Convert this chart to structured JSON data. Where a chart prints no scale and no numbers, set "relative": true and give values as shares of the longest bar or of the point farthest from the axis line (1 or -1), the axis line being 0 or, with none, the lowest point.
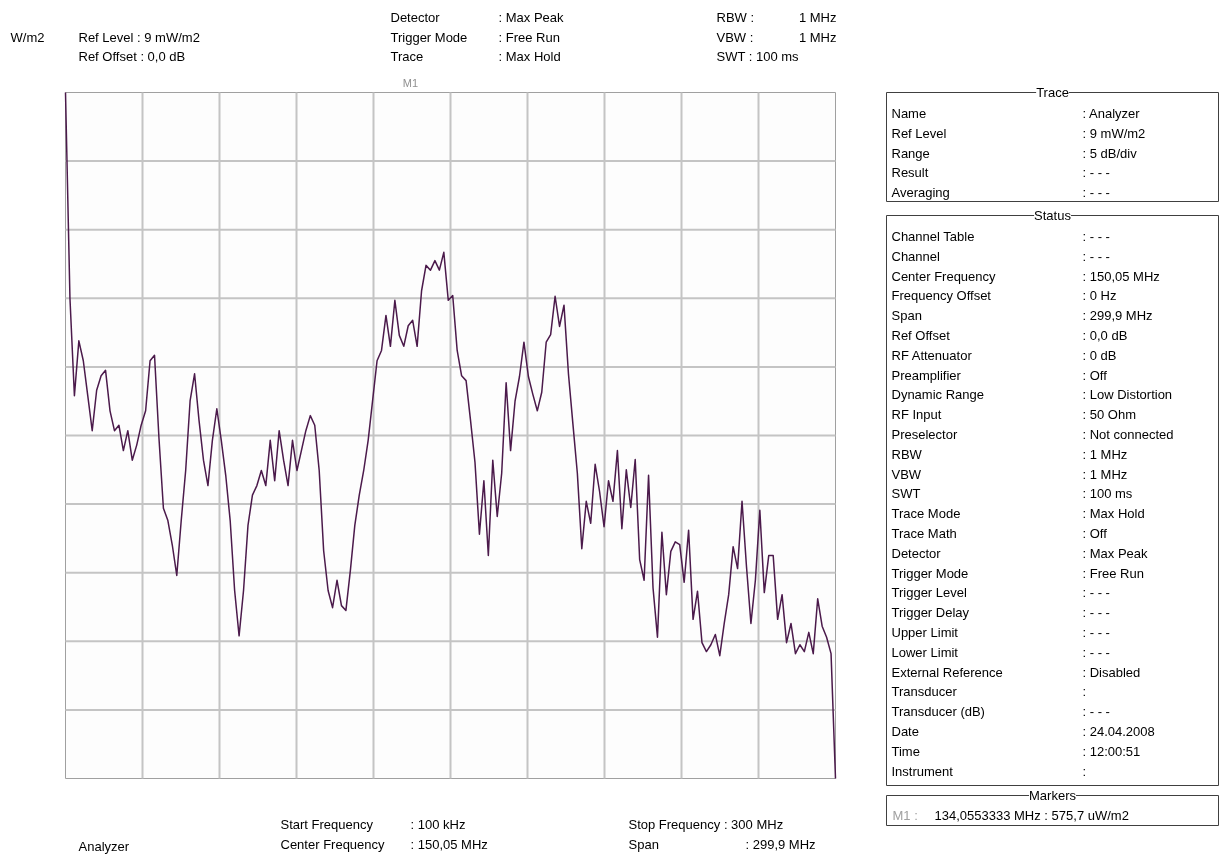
{
  "chart_data": [
    {
      "type": "line",
      "relative": true,
      "ylabel": "W/m2",
      "grid": true,
      "marker": "none",
      "line_style": "solid",
      "categories": [
        null,
        null,
        null,
        null,
        null,
        null,
        null,
        null,
        null,
        null,
        null,
        null,
        null,
        null,
        null,
        null,
        null,
        null,
        null,
        null,
        null,
        null,
        null,
        null,
        null,
        null,
        null,
        null,
        null,
        null,
        null,
        null,
        null,
        null,
        null,
        null,
        null,
        null,
        null,
        null,
        null,
        null,
        null,
        null,
        null,
        null,
        null,
        null,
        null,
        null,
        null,
        null,
        null,
        null,
        null,
        null,
        null,
        null,
        null,
        null,
        null,
        null,
        null,
        null,
        null,
        null,
        null,
        null,
        null,
        null,
        null,
        null,
        null,
        null,
        null,
        null,
        null,
        null,
        null,
        null,
        null,
        null,
        null,
        null,
        null,
        null,
        null,
        null,
        null,
        null,
        null,
        null,
        null,
        null,
        null,
        null,
        null,
        null,
        null,
        null,
        null,
        null,
        null,
        null,
        null,
        null,
        null,
        null,
        null,
        null,
        null,
        null,
        null,
        null,
        null,
        null,
        null,
        null,
        null,
        null,
        null,
        null,
        null,
        null,
        null,
        null,
        null,
        null,
        null,
        null,
        null,
        null,
        null,
        null,
        null,
        null,
        null,
        null,
        null,
        null,
        null,
        null,
        null,
        null,
        null,
        null,
        null,
        null,
        null,
        null,
        null,
        null,
        null,
        null,
        null,
        null,
        null,
        null,
        null,
        null,
        null,
        null,
        null,
        null,
        null,
        null,
        null,
        null,
        null,
        null,
        null,
        null,
        null,
        null
      ],
      "series": [
        {
          "color": "#4b1a4b",
          "values": [
            1.0,
            0.7,
            0.558,
            0.638,
            0.609,
            0.558,
            0.507,
            0.566,
            0.587,
            0.595,
            0.536,
            0.507,
            0.515,
            0.478,
            0.507,
            0.464,
            0.486,
            0.515,
            0.536,
            0.609,
            0.617,
            0.496,
            0.394,
            0.376,
            0.34,
            0.296,
            0.376,
            0.449,
            0.551,
            0.59,
            0.522,
            0.464,
            0.427,
            0.493,
            0.539,
            0.493,
            0.442,
            0.376,
            0.274,
            0.208,
            0.274,
            0.369,
            0.413,
            0.427,
            0.449,
            0.427,
            0.493,
            0.434,
            0.507,
            0.464,
            0.427,
            0.493,
            0.449,
            0.478,
            0.507,
            0.529,
            0.515,
            0.449,
            0.332,
            0.274,
            0.249,
            0.289,
            0.252,
            0.245,
            0.303,
            0.369,
            0.413,
            0.449,
            0.493,
            0.551,
            0.609,
            0.624,
            0.675,
            0.63,
            0.697,
            0.646,
            0.63,
            0.66,
            0.668,
            0.63,
            0.711,
            0.748,
            0.741,
            0.755,
            0.741,
            0.767,
            0.697,
            0.704,
            0.624,
            0.587,
            0.58,
            0.522,
            0.461,
            0.356,
            0.434,
            0.325,
            0.464,
            0.382,
            0.445,
            0.577,
            0.478,
            0.55,
            0.586,
            0.636,
            0.586,
            0.56,
            0.536,
            0.563,
            0.636,
            0.647,
            0.703,
            0.659,
            0.69,
            0.59,
            0.517,
            0.445,
            0.335,
            0.404,
            0.372,
            0.458,
            0.418,
            0.367,
            0.434,
            0.404,
            0.478,
            0.364,
            0.45,
            0.395,
            0.465,
            0.319,
            0.289,
            0.442,
            0.278,
            0.206,
            0.359,
            0.268,
            0.331,
            0.345,
            0.341,
            0.286,
            0.362,
            0.232,
            0.273,
            0.198,
            0.185,
            0.195,
            0.21,
            0.179,
            0.226,
            0.268,
            0.338,
            0.306,
            0.404,
            0.309,
            0.226,
            0.289,
            0.391,
            0.271,
            0.325,
            0.325,
            0.232,
            0.268,
            0.198,
            0.226,
            0.182,
            0.195,
            0.185,
            0.213,
            0.182,
            0.262,
            0.222,
            0.206,
            0.182,
            0.0
          ]
        }
      ],
      "annotations": [
        "Ref Level : 9   mW/m2",
        "Ref Offset : 0,0 dB",
        "Detector",
        ": Max Peak",
        "Trigger Mode",
        ": Free Run",
        "Trace",
        ": Max Hold",
        "RBW :",
        "1 MHz",
        "VBW :",
        "1 MHz",
        "SWT : 100 ms",
        "Start Frequency",
        ":  100   kHz",
        "Center Frequency",
        ": 150,05 MHz",
        "Stop Frequency : 300   MHz",
        "Span",
        ": 299,9 MHz",
        "Analyzer",
        "M1"
      ]
    },
    {
      "type": "other",
      "title": "Trace",
      "annotations": [
        "Name",
        ": Analyzer",
        "Ref Level",
        ":    9    mW/m2",
        "Range",
        ": 5 dB/div",
        "Result",
        ": - - -",
        "Averaging",
        ": - - -"
      ]
    },
    {
      "type": "other",
      "title": "Status",
      "annotations": [
        "Channel Table",
        ": - - -",
        "Channel",
        ": - - -",
        "Center Frequency",
        ": 150,05 MHz",
        "Frequency Offset",
        ":    0     Hz",
        "Span",
        ": 299,9   MHz",
        "Ref Offset",
        ":    0,0   dB",
        "RF Attenuator",
        ":    0     dB",
        "Preamplifier",
        ": Off",
        "Dynamic Range",
        ": Low Distortion",
        "RF Input",
        ":   50    Ohm",
        "Preselector",
        ": Not connected",
        "RBW",
        ":    1      MHz",
        "VBW",
        ":    1      MHz",
        "SWT",
        ": 100     ms",
        "Trace Mode",
        ": Max Hold",
        "Trace Math",
        ": Off",
        "Detector",
        ": Max Peak",
        "Trigger Mode",
        ": Free Run",
        "Trigger Level",
        ": - - -",
        "Trigger Delay",
        ": - - -",
        "Upper Limit",
        ": - - -",
        "Lower Limit",
        ": - - -",
        "External Reference",
        ": Disabled",
        "Transducer",
        ":",
        "Transducer (dB)",
        ": - - -",
        "Date",
        ": 24.04.2008",
        "Time",
        ": 12:00:51",
        "Instrument",
        ":"
      ]
    },
    {
      "type": "other",
      "title": "Markers",
      "annotations": [
        "M1 :",
        "134,0553333 MHz :   575,7 uW/m2"
      ]
    }
  ]
}
